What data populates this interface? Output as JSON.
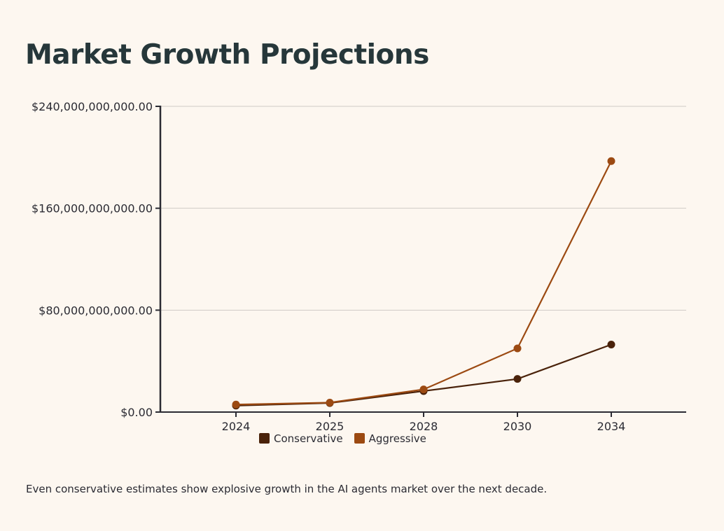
{
  "chart_data": {
    "type": "line",
    "title": "Market Growth Projections",
    "categories": [
      "2024",
      "2025",
      "2028",
      "2030",
      "2034"
    ],
    "ylim": [
      0,
      240000000000
    ],
    "yticks": [
      {
        "value": 0,
        "label": "$0.00"
      },
      {
        "value": 80000000000,
        "label": "$80,000,000,000.00"
      },
      {
        "value": 160000000000,
        "label": "$160,000,000,000.00"
      },
      {
        "value": 240000000000,
        "label": "$240,000,000,000.00"
      }
    ],
    "grid": true,
    "legend_position": "bottom",
    "series": [
      {
        "name": "Conservative",
        "color": "#4a220a",
        "values": [
          5100000000,
          7100000000,
          16500000000,
          26000000000,
          53000000000
        ]
      },
      {
        "name": "Aggressive",
        "color": "#9c4a12",
        "values": [
          5900000000,
          7400000000,
          17800000000,
          50000000000,
          197000000000
        ]
      }
    ],
    "caption": "Even conservative estimates show explosive growth in the AI agents market over the next decade."
  }
}
